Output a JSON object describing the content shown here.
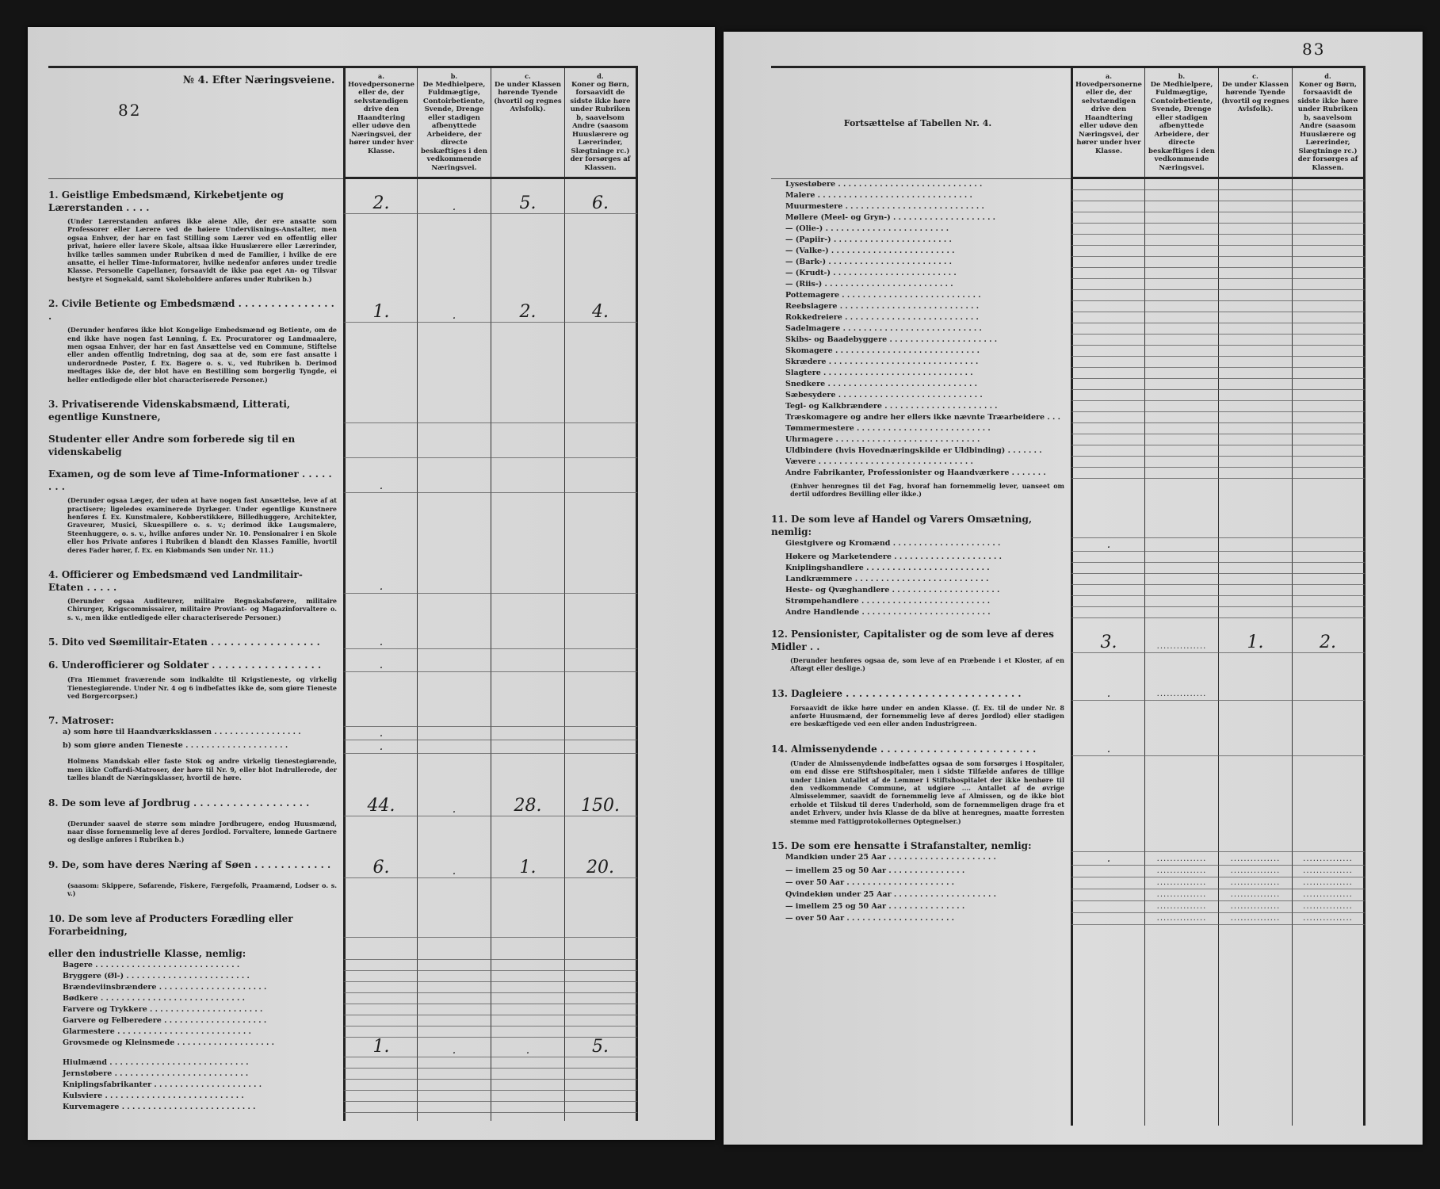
{
  "left": {
    "page_number": "82",
    "table_title": "№ 4. Efter Næringsveiene.",
    "columns": [
      {
        "letter": "a.",
        "text": "Hovedpersonerne eller de, der selvstændigen drive den Haandtering eller udøve den Næringsvei, der hører under hver Klasse."
      },
      {
        "letter": "b.",
        "text": "De Medhielpere, Fuldmægtige, Contoirbetiente, Svende, Drenge eller stadigen afbenyttede Arbeidere, der directe beskæftiges i den vedkommende Næringsvei."
      },
      {
        "letter": "c.",
        "text": "De under Klassen hørende Tyende (hvortil og regnes Avlsfolk)."
      },
      {
        "letter": "d.",
        "text": "Koner og Børn, forsaavidt de sidste ikke høre under Rubriken b, saavelsom Andre (saasom Huuslærere og Lærerinder, Slægtninge rc.) der forsørges af Klassen."
      }
    ],
    "lines": [
      {
        "kind": "heading",
        "text": "1. Geistlige Embedsmænd, Kirkebetjente og Lærerstanden . . . .",
        "values": [
          "2.",
          ".",
          "5.",
          "6."
        ]
      },
      {
        "kind": "note",
        "text": "(Under Lærerstanden anføres ikke alene Alle, der ere ansatte som Professorer eller Lærere ved de høiere Underviisnings-Anstalter, men ogsaa Enhver, der har en fast Stilling som Lærer ved en offentlig eller privat, høiere eller lavere Skole, altsaa ikke Huuslærere eller Lærerinder, hvilke tælles sammen under Rubriken d med de Familier, i hvilke de ere ansatte, ei heller Time-Informatorer, hvilke nedenfor anføres under tredie Klasse. Personelle Capellaner, forsaavidt de ikke paa eget An- og Tilsvar bestyre et Sognekald, samt Skoleholdere anføres under Rubriken b.)"
      },
      {
        "kind": "heading",
        "text": "2. Civile Betiente og Embedsmænd . . . . . . . . . . . . . . . .",
        "values": [
          "1.",
          ".",
          "2.",
          "4."
        ]
      },
      {
        "kind": "note",
        "text": "(Derunder henføres ikke blot Kongelige Embedsmænd og Betiente, om de end ikke have nogen fast Lønning, f. Ex. Procuratorer og Landmaalere, men ogsaa Enhver, der har en fast Ansættelse ved en Commune, Stiftelse eller anden offentlig Indretning, dog saa at de, som ere fast ansatte i underordnede Poster, f. Ex. Bagere o. s. v., ved Rubriken b. Derimod medtages ikke de, der blot have en Bestilling som borgerlig Tyngde, ei heller entledigede eller blot characteriserede Personer.)"
      },
      {
        "kind": "heading",
        "text": "3. Privatiserende Videnskabsmænd, Litterati, egentlige Kunstnere,"
      },
      {
        "kind": "heading",
        "text": "Studenter eller Andre som forberede sig til en videnskabelig"
      },
      {
        "kind": "heading",
        "text": "Examen, og de som leve af Time-Informationer . . . . . . . .",
        "values": [
          ".",
          "",
          "",
          ""
        ]
      },
      {
        "kind": "note",
        "text": "(Derunder ogsaa Læger, der uden at have nogen fast Ansættelse, leve af at practisere; ligeledes examinerede Dyrlæger. Under egentlige Kunstnere henføres f. Ex. Kunstmalere, Kobberstikkere, Billedhuggere, Architekter, Graveurer, Musici, Skuespillere o. s. v.; derimod ikke Laugsmalere, Steenhuggere, o. s. v., hvilke anføres under Nr. 10. Pensionairer i en Skole eller hos Private anføres i Rubriken d blandt den Klasses Familie, hvortil deres Fader hører, f. Ex. en Kiøbmands Søn under Nr. 11.)"
      },
      {
        "kind": "heading",
        "text": "4. Officierer og Embedsmænd ved Landmilitair-Etaten . . . . .",
        "values": [
          ".",
          "",
          "",
          ""
        ]
      },
      {
        "kind": "note",
        "text": "(Derunder ogsaa Auditeurer, militaire Regnskabsførere, militaire Chirurger, Krigscommissairer, militaire Proviant- og Magazinforvaltere o. s. v., men ikke entledigede eller characteriserede Personer.)"
      },
      {
        "kind": "heading",
        "text": "5. Dito ved Søemilitair-Etaten . . . . . . . . . . . . . . . . .",
        "values": [
          ".",
          "",
          "",
          ""
        ]
      },
      {
        "kind": "heading",
        "text": "6. Underofficierer og Soldater . . . . . . . . . . . . . . . . .",
        "values": [
          ".",
          "",
          "",
          ""
        ]
      },
      {
        "kind": "note",
        "text": "(Fra Hiemmet fraværende som indkaldte til Krigstieneste, og virkelig Tienestegiørende. Under Nr. 4 og 6 indbefattes ikke de, som giøre Tieneste ved Borgercorpser.)"
      },
      {
        "kind": "heading",
        "text": "7. Matroser:"
      },
      {
        "kind": "sub",
        "text": "a) som høre til Haandværksklassen . . . . . . . . . . . . . . . . .",
        "values": [
          ".",
          "",
          "",
          ""
        ]
      },
      {
        "kind": "sub",
        "text": "b) som giøre anden Tieneste . . . . . . . . . . . . . . . . . . . .",
        "values": [
          ".",
          "",
          "",
          ""
        ]
      },
      {
        "kind": "note",
        "text": "Holmens Mandskab eller faste Stok og andre virkelig tienestegiørende, men ikke Coffardi-Matroser, der høre til Nr. 9, eller blot Indrullerede, der tælles blandt de Næringsklasser, hvortil de høre."
      },
      {
        "kind": "heading",
        "text": "8. De som leve af Jordbrug . . . . . . . . . . . . . . . . . .",
        "values": [
          "44.",
          ".",
          "28.",
          "150."
        ]
      },
      {
        "kind": "note",
        "text": "(Derunder saavel de større som mindre Jordbrugere, endog Huusmænd, naar disse fornemmelig leve af deres Jordlod. Forvaltere, lønnede Gartnere og deslige anføres i Rubriken b.)"
      },
      {
        "kind": "heading",
        "text": "9. De, som have deres Næring af Søen . . . . . . . . . . . .",
        "values": [
          "6.",
          ".",
          "1.",
          "20."
        ]
      },
      {
        "kind": "note",
        "text": "(saasom: Skippere, Søfarende, Fiskere, Færgefolk, Praamænd, Lodser o. s. v.)"
      },
      {
        "kind": "heading",
        "text": "10. De som leve af Producters Forædling eller Forarbeidning,"
      },
      {
        "kind": "heading",
        "text": "eller den industrielle Klasse, nemlig:"
      },
      {
        "kind": "sub",
        "text": "Bagere . . . . . . . . . . . . . . . . . . . . . . . . . . . ."
      },
      {
        "kind": "sub",
        "text": "Bryggere (Øl-) . . . . . . . . . . . . . . . . . . . . . . . ."
      },
      {
        "kind": "sub",
        "text": "Brændeviinsbrændere . . . . . . . . . . . . . . . . . . . . ."
      },
      {
        "kind": "sub",
        "text": "Bødkere . . . . . . . . . . . . . . . . . . . . . . . . . . . ."
      },
      {
        "kind": "sub",
        "text": "Farvere og Trykkere . . . . . . . . . . . . . . . . . . . . . ."
      },
      {
        "kind": "sub",
        "text": "Garvere og Felberedere . . . . . . . . . . . . . . . . . . . ."
      },
      {
        "kind": "sub",
        "text": "Glarmestere . . . . . . . . . . . . . . . . . . . . . . . . . ."
      },
      {
        "kind": "sub",
        "text": "Grovsmede og Kleinsmede . . . . . . . . . . . . . . . . . . .",
        "values": [
          "1.",
          ".",
          ".",
          "5."
        ]
      },
      {
        "kind": "sub",
        "text": "Hiulmænd . . . . . . . . . . . . . . . . . . . . . . . . . . ."
      },
      {
        "kind": "sub",
        "text": "Jernstøbere . . . . . . . . . . . . . . . . . . . . . . . . . ."
      },
      {
        "kind": "sub",
        "text": "Kniplingsfabrikanter . . . . . . . . . . . . . . . . . . . . ."
      },
      {
        "kind": "sub",
        "text": "Kulsviere . . . . . . . . . . . . . . . . . . . . . . . . . . ."
      },
      {
        "kind": "sub",
        "text": "Kurvemagere . . . . . . . . . . . . . . . . . . . . . . . . . ."
      }
    ]
  },
  "right": {
    "page_number": "83",
    "table_title": "Fortsættelse af Tabellen Nr. 4.",
    "columns": [
      {
        "letter": "a.",
        "text": "Hovedpersonerne eller de, der selvstændigen drive den Haandtering eller udøve den Næringsvei, der hører under hver Klasse."
      },
      {
        "letter": "b.",
        "text": "De Medhielpere, Fuldmægtige, Contoirbetiente, Svende, Drenge eller stadigen afbenyttede Arbeidere, der directe beskæftiges i den vedkommende Næringsvei."
      },
      {
        "letter": "c.",
        "text": "De under Klassen hørende Tyende (hvortil og regnes Avlsfolk)."
      },
      {
        "letter": "d.",
        "text": "Koner og Børn, forsaavidt de sidste ikke høre under Rubriken b, saavelsom Andre (saasom Huuslærere og Lærerinder, Slægtninge rc.) der forsørges af Klassen."
      }
    ],
    "lines": [
      {
        "kind": "sub",
        "text": "Lysestøbere . . . . . . . . . . . . . . . . . . . . . . . . . . . ."
      },
      {
        "kind": "sub",
        "text": "Malere . . . . . . . . . . . . . . . . . . . . . . . . . . . . . ."
      },
      {
        "kind": "sub",
        "text": "Muurmestere . . . . . . . . . . . . . . . . . . . . . . . . . . ."
      },
      {
        "kind": "sub",
        "text": "Møllere (Meel- og Gryn-) . . . . . . . . . . . . . . . . . . . ."
      },
      {
        "kind": "sub",
        "text": "    —    (Olie-) . . . . . . . . . . . . . . . . . . . . . . . ."
      },
      {
        "kind": "sub",
        "text": "    —    (Papiir-) . . . . . . . . . . . . . . . . . . . . . . ."
      },
      {
        "kind": "sub",
        "text": "    —    (Valke-) . . . . . . . . . . . . . . . . . . . . . . . ."
      },
      {
        "kind": "sub",
        "text": "    —    (Bark-) . . . . . . . . . . . . . . . . . . . . . . . ."
      },
      {
        "kind": "sub",
        "text": "    —    (Krudt-) . . . . . . . . . . . . . . . . . . . . . . . ."
      },
      {
        "kind": "sub",
        "text": "    —    (Riis-) . . . . . . . . . . . . . . . . . . . . . . . . ."
      },
      {
        "kind": "sub",
        "text": "Pottemagere . . . . . . . . . . . . . . . . . . . . . . . . . . ."
      },
      {
        "kind": "sub",
        "text": "Reebslagere . . . . . . . . . . . . . . . . . . . . . . . . . . ."
      },
      {
        "kind": "sub",
        "text": "Rokkedreiere . . . . . . . . . . . . . . . . . . . . . . . . . ."
      },
      {
        "kind": "sub",
        "text": "Sadelmagere . . . . . . . . . . . . . . . . . . . . . . . . . . ."
      },
      {
        "kind": "sub",
        "text": "Skibs- og Baadebyggere . . . . . . . . . . . . . . . . . . . . ."
      },
      {
        "kind": "sub",
        "text": "Skomagere . . . . . . . . . . . . . . . . . . . . . . . . . . . ."
      },
      {
        "kind": "sub",
        "text": "Skrædere . . . . . . . . . . . . . . . . . . . . . . . . . . . . ."
      },
      {
        "kind": "sub",
        "text": "Slagtere . . . . . . . . . . . . . . . . . . . . . . . . . . . . ."
      },
      {
        "kind": "sub",
        "text": "Snedkere . . . . . . . . . . . . . . . . . . . . . . . . . . . . ."
      },
      {
        "kind": "sub",
        "text": "Sæbesydere . . . . . . . . . . . . . . . . . . . . . . . . . . . ."
      },
      {
        "kind": "sub",
        "text": "Tegl- og Kalkbrændere . . . . . . . . . . . . . . . . . . . . . ."
      },
      {
        "kind": "sub",
        "text": "Træskomagere og andre her ellers ikke nævnte Træarbeidere . . ."
      },
      {
        "kind": "sub",
        "text": "Tømmermestere . . . . . . . . . . . . . . . . . . . . . . . . . ."
      },
      {
        "kind": "sub",
        "text": "Uhrmagere . . . . . . . . . . . . . . . . . . . . . . . . . . . ."
      },
      {
        "kind": "sub",
        "text": "Uldbindere (hvis Hovednæringskilde er Uldbinding) . . . . . . ."
      },
      {
        "kind": "sub",
        "text": "Vævere . . . . . . . . . . . . . . . . . . . . . . . . . . . . . ."
      },
      {
        "kind": "sub",
        "text": "Andre Fabrikanter, Professionister og Haandværkere . . . . . . ."
      },
      {
        "kind": "note",
        "text": "(Enhver henregnes til det Fag, hvoraf han fornemmelig lever, uanseet om dertil udfordres Bevilling eller ikke.)"
      },
      {
        "kind": "heading",
        "text": "11. De som leve af Handel og Varers Omsætning, nemlig:"
      },
      {
        "kind": "sub",
        "text": "Giestgivere og Kromænd . . . . . . . . . . . . . . . . . . . . .",
        "values": [
          ".",
          "",
          "",
          ""
        ]
      },
      {
        "kind": "sub",
        "text": "Høkere og Marketendere . . . . . . . . . . . . . . . . . . . . ."
      },
      {
        "kind": "sub",
        "text": "Kniplingshandlere . . . . . . . . . . . . . . . . . . . . . . . ."
      },
      {
        "kind": "sub",
        "text": "Landkræmmere . . . . . . . . . . . . . . . . . . . . . . . . . ."
      },
      {
        "kind": "sub",
        "text": "Heste- og Qvæghandlere . . . . . . . . . . . . . . . . . . . . ."
      },
      {
        "kind": "sub",
        "text": "Strømpehandlere . . . . . . . . . . . . . . . . . . . . . . . . ."
      },
      {
        "kind": "sub",
        "text": "Andre Handlende . . . . . . . . . . . . . . . . . . . . . . . . ."
      },
      {
        "kind": "heading",
        "text": "12. Pensionister, Capitalister og de som leve af deres Midler . .",
        "values": [
          "3.",
          "...............",
          "1.",
          "2."
        ]
      },
      {
        "kind": "note",
        "text": "(Derunder henføres ogsaa de, som leve af en Præbende i et Kloster, af en Aftægt eller deslige.)"
      },
      {
        "kind": "heading",
        "text": "13. Dagleiere . . . . . . . . . . . . . . . . . . . . . . . . . . .",
        "values": [
          ".",
          "...............",
          "",
          ""
        ]
      },
      {
        "kind": "note",
        "text": "Forsaavidt de ikke høre under en anden Klasse. (f. Ex. til de under Nr. 8 anførte Huusmænd, der fornemmelig leve af deres Jordlod) eller stadigen ere beskæftigede ved een eller anden Industrigreen."
      },
      {
        "kind": "heading",
        "text": "14. Almissenydende . . . . . . . . . . . . . . . . . . . . . . . .",
        "values": [
          ".",
          "",
          "",
          ""
        ]
      },
      {
        "kind": "note",
        "text": "(Under de Almissenydende indbefattes ogsaa de som forsørges i Hospitaler, om end disse ere Stiftshospitaler, men i sidste Tilfælde anføres de tillige under Linien Antallet af de Lemmer i Stiftshospitalet der ikke henhøre til den vedkommende Commune, at udgiøre .... Antallet af de øvrige Almisselemmer, saavidt de fornemmelig leve af Almissen, og de ikke blot erholde et Tilskud til deres Underhold, som de fornemmeligen drage fra et andet Erhverv, under hvis Klasse de da blive at henregnes, maatte forresten stemme med Fattigprotokollernes Optegnelser.)"
      },
      {
        "kind": "heading",
        "text": "15. De som ere hensatte i Strafanstalter, nemlig:"
      },
      {
        "kind": "sub",
        "text": "Mandkiøn under 25 Aar . . . . . . . . . . . . . . . . . . . . .",
        "values": [
          ".",
          "...............",
          "...............",
          "..............."
        ]
      },
      {
        "kind": "sub",
        "text": "      —       imellem 25 og 50 Aar . . . . . . . . . . . . . . .",
        "values": [
          "",
          "...............",
          "...............",
          "..............."
        ]
      },
      {
        "kind": "sub",
        "text": "      —       over 50 Aar . . . . . . . . . . . . . . . . . . . . .",
        "values": [
          "",
          "...............",
          "...............",
          "..............."
        ]
      },
      {
        "kind": "sub",
        "text": "Qvindekiøn under 25 Aar . . . . . . . . . . . . . . . . . . . .",
        "values": [
          "",
          "...............",
          "...............",
          "..............."
        ]
      },
      {
        "kind": "sub",
        "text": "      —       imellem 25 og 50 Aar . . . . . . . . . . . . . . .",
        "values": [
          "",
          "...............",
          "...............",
          "..............."
        ]
      },
      {
        "kind": "sub",
        "text": "      —       over 50 Aar . . . . . . . . . . . . . . . . . . . . .",
        "values": [
          "",
          "...............",
          "...............",
          "..............."
        ]
      }
    ]
  }
}
